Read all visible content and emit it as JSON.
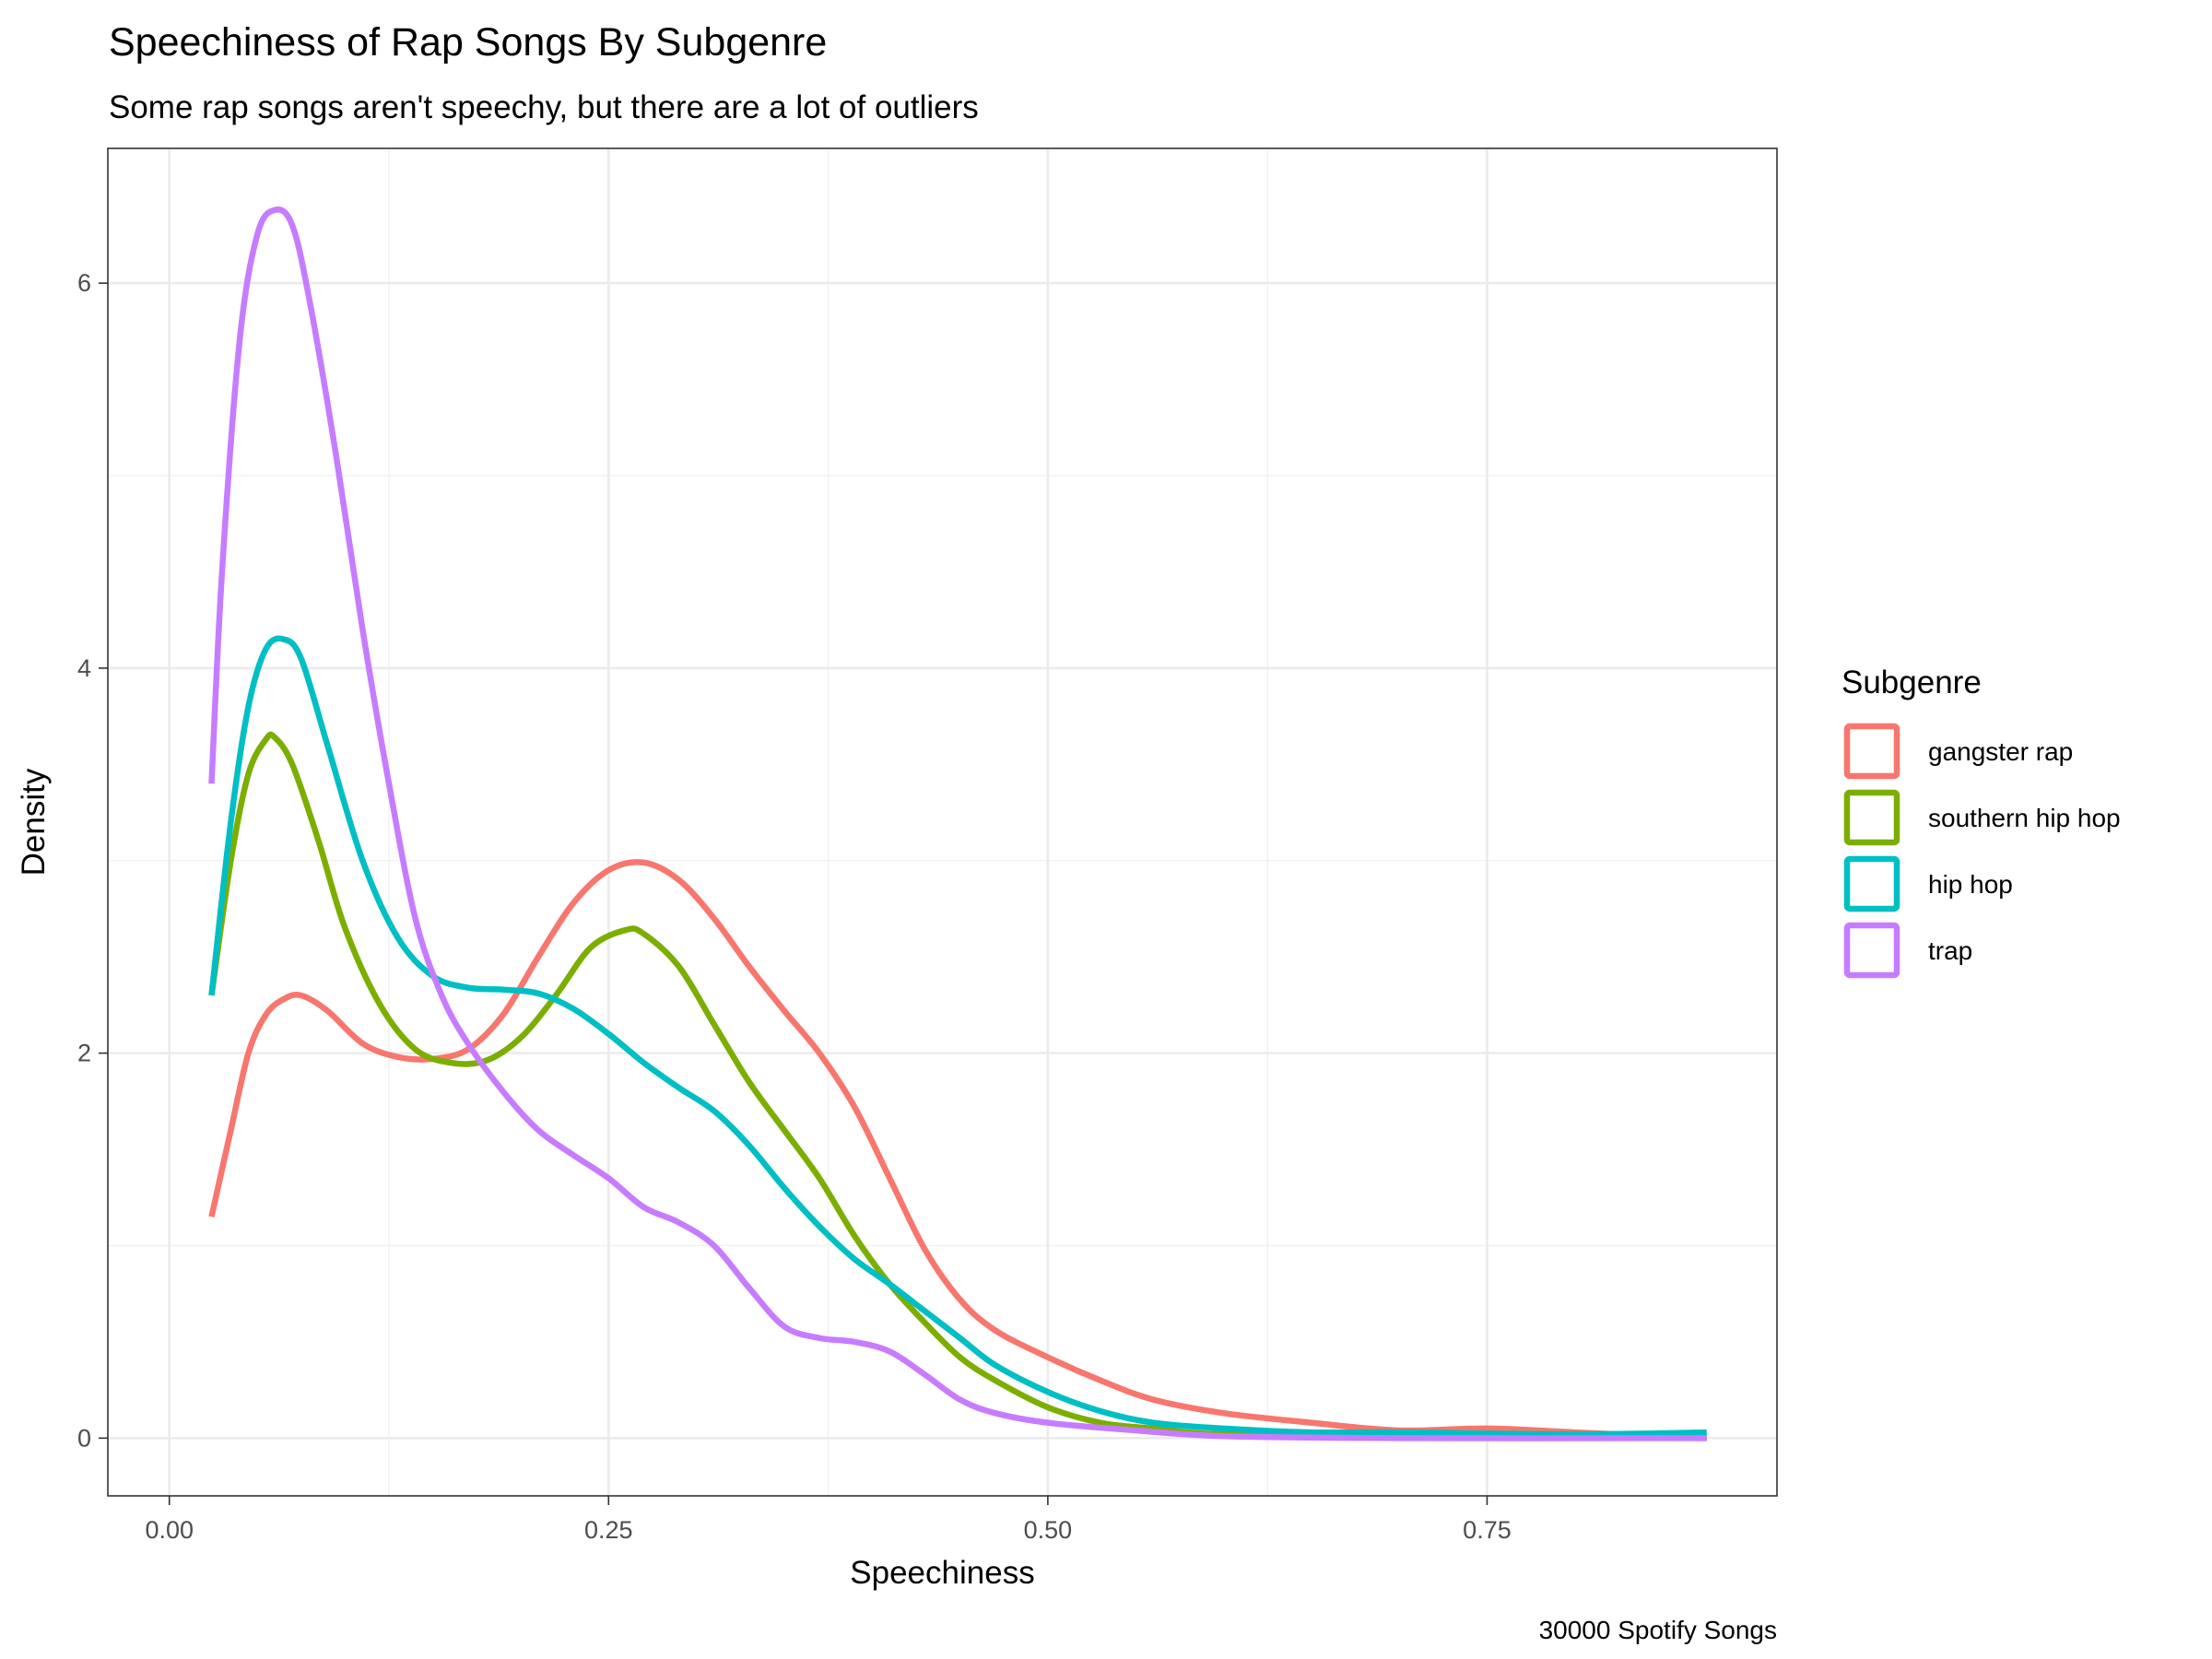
{
  "chart_data": {
    "type": "line",
    "title": "Speechiness of Rap Songs By Subgenre",
    "subtitle": "Some rap songs aren't speechy, but there are a lot of outliers",
    "xlabel": "Speechiness",
    "ylabel": "Density",
    "caption": "30000 Spotify Songs",
    "xlim": [
      -0.035,
      0.915
    ],
    "ylim": [
      -0.3,
      6.7
    ],
    "x_ticks": [
      0.0,
      0.25,
      0.5,
      0.75
    ],
    "x_tick_labels": [
      "0.00",
      "0.25",
      "0.50",
      "0.75"
    ],
    "y_ticks": [
      0,
      2,
      4,
      6
    ],
    "y_tick_labels": [
      "0",
      "2",
      "4",
      "6"
    ],
    "grid": true,
    "legend": {
      "title": "Subgenre",
      "position": "right"
    },
    "series": [
      {
        "name": "gangster rap",
        "color": "#F8766D",
        "points": [
          [
            0.024,
            1.15
          ],
          [
            0.035,
            1.6
          ],
          [
            0.045,
            2.0
          ],
          [
            0.055,
            2.2
          ],
          [
            0.065,
            2.28
          ],
          [
            0.075,
            2.3
          ],
          [
            0.09,
            2.22
          ],
          [
            0.11,
            2.05
          ],
          [
            0.13,
            1.98
          ],
          [
            0.15,
            1.97
          ],
          [
            0.17,
            2.02
          ],
          [
            0.19,
            2.2
          ],
          [
            0.21,
            2.5
          ],
          [
            0.23,
            2.78
          ],
          [
            0.25,
            2.95
          ],
          [
            0.27,
            2.99
          ],
          [
            0.29,
            2.9
          ],
          [
            0.31,
            2.7
          ],
          [
            0.33,
            2.45
          ],
          [
            0.35,
            2.22
          ],
          [
            0.37,
            2.0
          ],
          [
            0.39,
            1.72
          ],
          [
            0.41,
            1.35
          ],
          [
            0.43,
            0.98
          ],
          [
            0.45,
            0.72
          ],
          [
            0.47,
            0.56
          ],
          [
            0.5,
            0.42
          ],
          [
            0.53,
            0.3
          ],
          [
            0.56,
            0.2
          ],
          [
            0.6,
            0.13
          ],
          [
            0.65,
            0.08
          ],
          [
            0.7,
            0.04
          ],
          [
            0.75,
            0.05
          ],
          [
            0.8,
            0.03
          ],
          [
            0.875,
            0.0
          ]
        ]
      },
      {
        "name": "southern hip hop",
        "color": "#7CAE00",
        "points": [
          [
            0.024,
            2.3
          ],
          [
            0.035,
            3.0
          ],
          [
            0.045,
            3.45
          ],
          [
            0.055,
            3.63
          ],
          [
            0.06,
            3.64
          ],
          [
            0.07,
            3.5
          ],
          [
            0.085,
            3.1
          ],
          [
            0.1,
            2.65
          ],
          [
            0.12,
            2.25
          ],
          [
            0.14,
            2.02
          ],
          [
            0.16,
            1.95
          ],
          [
            0.18,
            1.96
          ],
          [
            0.2,
            2.08
          ],
          [
            0.22,
            2.3
          ],
          [
            0.24,
            2.55
          ],
          [
            0.26,
            2.64
          ],
          [
            0.27,
            2.62
          ],
          [
            0.29,
            2.45
          ],
          [
            0.31,
            2.15
          ],
          [
            0.33,
            1.85
          ],
          [
            0.35,
            1.6
          ],
          [
            0.37,
            1.35
          ],
          [
            0.39,
            1.05
          ],
          [
            0.41,
            0.8
          ],
          [
            0.43,
            0.6
          ],
          [
            0.45,
            0.42
          ],
          [
            0.47,
            0.3
          ],
          [
            0.5,
            0.16
          ],
          [
            0.53,
            0.08
          ],
          [
            0.56,
            0.05
          ],
          [
            0.6,
            0.02
          ],
          [
            0.7,
            0.01
          ],
          [
            0.875,
            0.0
          ]
        ]
      },
      {
        "name": "hip hop",
        "color": "#00BFC4",
        "points": [
          [
            0.024,
            2.3
          ],
          [
            0.035,
            3.2
          ],
          [
            0.045,
            3.8
          ],
          [
            0.055,
            4.1
          ],
          [
            0.065,
            4.15
          ],
          [
            0.075,
            4.05
          ],
          [
            0.09,
            3.6
          ],
          [
            0.11,
            3.0
          ],
          [
            0.13,
            2.6
          ],
          [
            0.15,
            2.4
          ],
          [
            0.17,
            2.34
          ],
          [
            0.19,
            2.33
          ],
          [
            0.21,
            2.31
          ],
          [
            0.23,
            2.23
          ],
          [
            0.25,
            2.1
          ],
          [
            0.27,
            1.95
          ],
          [
            0.29,
            1.82
          ],
          [
            0.31,
            1.7
          ],
          [
            0.33,
            1.52
          ],
          [
            0.35,
            1.3
          ],
          [
            0.37,
            1.1
          ],
          [
            0.39,
            0.93
          ],
          [
            0.41,
            0.8
          ],
          [
            0.43,
            0.66
          ],
          [
            0.45,
            0.52
          ],
          [
            0.47,
            0.38
          ],
          [
            0.5,
            0.24
          ],
          [
            0.53,
            0.14
          ],
          [
            0.56,
            0.08
          ],
          [
            0.6,
            0.05
          ],
          [
            0.65,
            0.03
          ],
          [
            0.7,
            0.03
          ],
          [
            0.8,
            0.02
          ],
          [
            0.875,
            0.03
          ]
        ]
      },
      {
        "name": "trap",
        "color": "#C77CFF",
        "points": [
          [
            0.024,
            3.4
          ],
          [
            0.03,
            4.5
          ],
          [
            0.04,
            5.7
          ],
          [
            0.05,
            6.25
          ],
          [
            0.06,
            6.38
          ],
          [
            0.07,
            6.3
          ],
          [
            0.08,
            5.9
          ],
          [
            0.095,
            5.1
          ],
          [
            0.11,
            4.2
          ],
          [
            0.125,
            3.4
          ],
          [
            0.14,
            2.7
          ],
          [
            0.155,
            2.3
          ],
          [
            0.17,
            2.05
          ],
          [
            0.19,
            1.8
          ],
          [
            0.21,
            1.6
          ],
          [
            0.23,
            1.47
          ],
          [
            0.25,
            1.35
          ],
          [
            0.27,
            1.2
          ],
          [
            0.29,
            1.12
          ],
          [
            0.31,
            1.0
          ],
          [
            0.33,
            0.78
          ],
          [
            0.35,
            0.58
          ],
          [
            0.37,
            0.52
          ],
          [
            0.39,
            0.5
          ],
          [
            0.41,
            0.45
          ],
          [
            0.43,
            0.33
          ],
          [
            0.45,
            0.2
          ],
          [
            0.47,
            0.13
          ],
          [
            0.5,
            0.08
          ],
          [
            0.55,
            0.04
          ],
          [
            0.6,
            0.01
          ],
          [
            0.7,
            0.0
          ],
          [
            0.875,
            0.0
          ]
        ]
      }
    ]
  }
}
